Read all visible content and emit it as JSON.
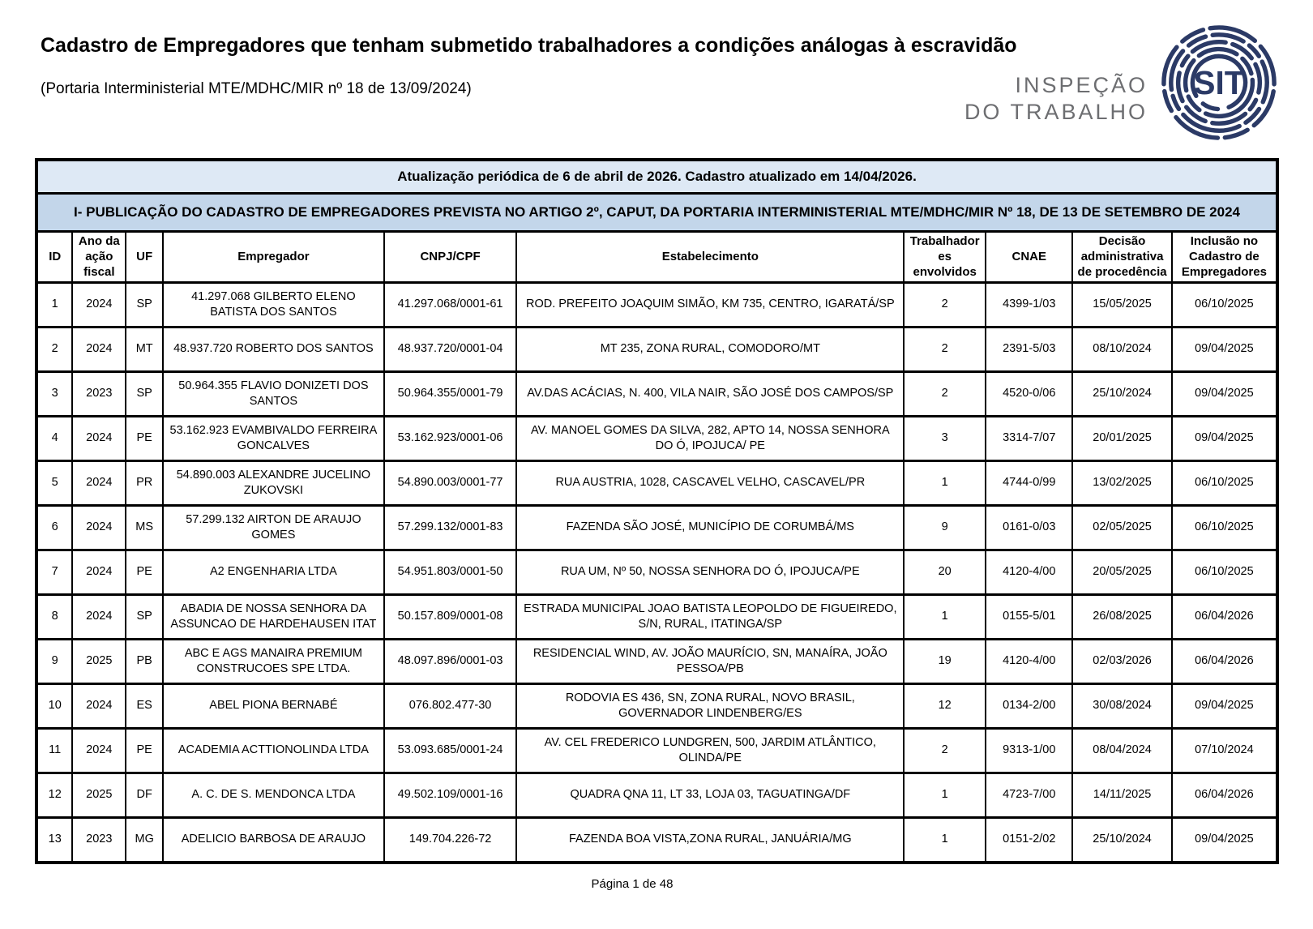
{
  "header": {
    "title": "Cadastro de Empregadores que tenham submetido trabalhadores a condições análogas à escravidão",
    "subtitle": "(Portaria Interministerial MTE/MDHC/MIR nº 18 de 13/09/2024)",
    "logo": {
      "line1": "INSPEÇÃO",
      "line2": "DO TRABALHO",
      "emblem_text": "SIT"
    }
  },
  "table": {
    "update_notice": "Atualização periódica de 6 de abril de 2026. Cadastro atualizado em 14/04/2026.",
    "section_title": "I- PUBLICAÇÃO DO CADASTRO DE EMPREGADORES PREVISTA NO ARTIGO 2º, CAPUT, DA PORTARIA INTERMINISTERIAL MTE/MDHC/MIR Nº 18, DE 13 DE SETEMBRO DE 2024",
    "columns": [
      "ID",
      "Ano da ação fiscal",
      "UF",
      "Empregador",
      "CNPJ/CPF",
      "Estabelecimento",
      "Trabalhadores envolvidos",
      "CNAE",
      "Decisão administrativa de procedência",
      "Inclusão no Cadastro de Empregadores"
    ],
    "rows": [
      [
        "1",
        "2024",
        "SP",
        "41.297.068 GILBERTO ELENO BATISTA DOS SANTOS",
        "41.297.068/0001-61",
        "ROD. PREFEITO JOAQUIM SIMÃO, KM 735, CENTRO, IGARATÁ/SP",
        "2",
        "4399-1/03",
        "15/05/2025",
        "06/10/2025"
      ],
      [
        "2",
        "2024",
        "MT",
        "48.937.720 ROBERTO DOS SANTOS",
        "48.937.720/0001-04",
        "MT 235, ZONA RURAL, COMODORO/MT",
        "2",
        "2391-5/03",
        "08/10/2024",
        "09/04/2025"
      ],
      [
        "3",
        "2023",
        "SP",
        "50.964.355 FLAVIO DONIZETI DOS SANTOS",
        "50.964.355/0001-79",
        "AV.DAS ACÁCIAS, N. 400, VILA NAIR, SÃO JOSÉ DOS CAMPOS/SP",
        "2",
        "4520-0/06",
        "25/10/2024",
        "09/04/2025"
      ],
      [
        "4",
        "2024",
        "PE",
        "53.162.923 EVAMBIVALDO FERREIRA GONCALVES",
        "53.162.923/0001-06",
        "AV. MANOEL GOMES DA SILVA, 282, APTO 14, NOSSA SENHORA DO Ó, IPOJUCA/ PE",
        "3",
        "3314-7/07",
        "20/01/2025",
        "09/04/2025"
      ],
      [
        "5",
        "2024",
        "PR",
        "54.890.003 ALEXANDRE JUCELINO ZUKOVSKI",
        "54.890.003/0001-77",
        "RUA AUSTRIA, 1028, CASCAVEL VELHO, CASCAVEL/PR",
        "1",
        "4744-0/99",
        "13/02/2025",
        "06/10/2025"
      ],
      [
        "6",
        "2024",
        "MS",
        "57.299.132 AIRTON DE ARAUJO GOMES",
        "57.299.132/0001-83",
        "FAZENDA SÃO JOSÉ, MUNICÍPIO DE CORUMBÁ/MS",
        "9",
        "0161-0/03",
        "02/05/2025",
        "06/10/2025"
      ],
      [
        "7",
        "2024",
        "PE",
        "A2 ENGENHARIA LTDA",
        "54.951.803/0001-50",
        "RUA UM, Nº 50, NOSSA SENHORA DO Ó, IPOJUCA/PE",
        "20",
        "4120-4/00",
        "20/05/2025",
        "06/10/2025"
      ],
      [
        "8",
        "2024",
        "SP",
        "ABADIA DE NOSSA SENHORA DA ASSUNCAO DE HARDEHAUSEN ITAT",
        "50.157.809/0001-08",
        "ESTRADA MUNICIPAL JOAO BATISTA LEOPOLDO DE FIGUEIREDO, S/N, RURAL, ITATINGA/SP",
        "1",
        "0155-5/01",
        "26/08/2025",
        "06/04/2026"
      ],
      [
        "9",
        "2025",
        "PB",
        "ABC E AGS MANAIRA PREMIUM CONSTRUCOES SPE LTDA.",
        "48.097.896/0001-03",
        "RESIDENCIAL WIND, AV. JOÃO MAURÍCIO, SN, MANAÍRA, JOÃO PESSOA/PB",
        "19",
        "4120-4/00",
        "02/03/2026",
        "06/04/2026"
      ],
      [
        "10",
        "2024",
        "ES",
        "ABEL PIONA BERNABÉ",
        "076.802.477-30",
        "RODOVIA ES 436, SN, ZONA RURAL, NOVO BRASIL, GOVERNADOR LINDENBERG/ES",
        "12",
        "0134-2/00",
        "30/08/2024",
        "09/04/2025"
      ],
      [
        "11",
        "2024",
        "PE",
        "ACADEMIA ACTTIONOLINDA LTDA",
        "53.093.685/0001-24",
        "AV. CEL FREDERICO LUNDGREN, 500, JARDIM ATLÂNTICO, OLINDA/PE",
        "2",
        "9313-1/00",
        "08/04/2024",
        "07/10/2024"
      ],
      [
        "12",
        "2025",
        "DF",
        "A. C. DE S. MENDONCA LTDA",
        "49.502.109/0001-16",
        "QUADRA QNA 11, LT 33, LOJA 03, TAGUATINGA/DF",
        "1",
        "4723-7/00",
        "14/11/2025",
        "06/04/2026"
      ],
      [
        "13",
        "2023",
        "MG",
        "ADELICIO BARBOSA DE ARAUJO",
        "149.704.226-72",
        "FAZENDA BOA VISTA,ZONA RURAL, JANUÁRIA/MG",
        "1",
        "0151-2/02",
        "25/10/2024",
        "09/04/2025"
      ]
    ]
  },
  "footer": {
    "page_label": "Página 1 de 48"
  },
  "colors": {
    "band1_background": "#dee9f5",
    "band2_background": "#c3d6ea",
    "logo_navy": "#2b3a66",
    "logo_gray": "#6d6e71",
    "border_black": "#000000"
  }
}
